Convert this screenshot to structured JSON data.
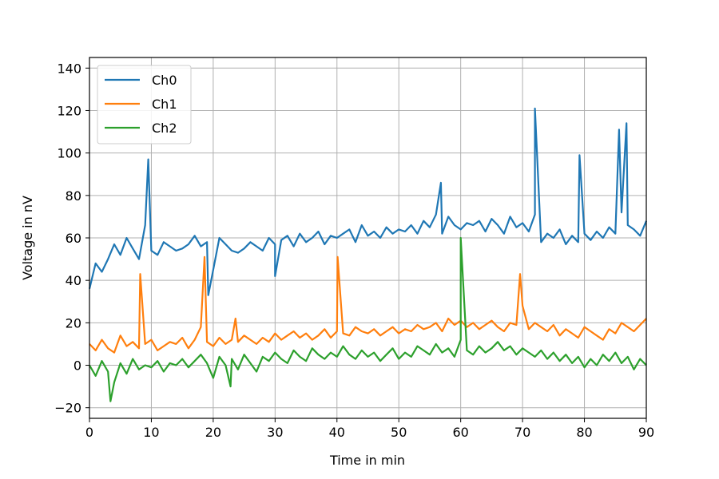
{
  "chart_data": {
    "type": "line",
    "title": "",
    "xlabel": "Time in min",
    "ylabel": "Voltage in nV",
    "xlim": [
      0,
      90
    ],
    "ylim": [
      -25,
      145
    ],
    "xticks": [
      0,
      10,
      20,
      30,
      40,
      50,
      60,
      70,
      80,
      90
    ],
    "yticks": [
      -20,
      0,
      20,
      40,
      60,
      80,
      100,
      120,
      140
    ],
    "ytick_labels": [
      "−20",
      "0",
      "20",
      "40",
      "60",
      "80",
      "100",
      "120",
      "140"
    ],
    "grid": true,
    "legend_position": "upper-left",
    "x": [
      0,
      1,
      2,
      3,
      4,
      5,
      6,
      7,
      8,
      9,
      10,
      11,
      12,
      13,
      14,
      15,
      16,
      17,
      18,
      19,
      20,
      21,
      22,
      23,
      24,
      25,
      26,
      27,
      28,
      29,
      30,
      31,
      32,
      33,
      34,
      35,
      36,
      37,
      38,
      39,
      40,
      41,
      42,
      43,
      44,
      45,
      46,
      47,
      48,
      49,
      50,
      51,
      52,
      53,
      54,
      55,
      56,
      57,
      58,
      59,
      60,
      61,
      62,
      63,
      64,
      65,
      66,
      67,
      68,
      69,
      70,
      71,
      72,
      73,
      74,
      75,
      76,
      77,
      78,
      79,
      80,
      81,
      82,
      83,
      84,
      85,
      86,
      87,
      88,
      89,
      90
    ],
    "series": [
      {
        "name": "Ch0",
        "color": "#1f77b4",
        "values": [
          36,
          48,
          44,
          50,
          57,
          52,
          60,
          55,
          50,
          66,
          54,
          52,
          58,
          56,
          54,
          55,
          57,
          61,
          56,
          58,
          45,
          60,
          57,
          54,
          53,
          55,
          58,
          56,
          54,
          60,
          57,
          59,
          61,
          56,
          62,
          58,
          60,
          63,
          57,
          61,
          60,
          62,
          64,
          58,
          66,
          61,
          63,
          60,
          65,
          62,
          64,
          63,
          66,
          62,
          68,
          65,
          71,
          62,
          70,
          66,
          64,
          67,
          66,
          68,
          63,
          69,
          66,
          62,
          70,
          65,
          67,
          63,
          71,
          58,
          62,
          60,
          64,
          57,
          61,
          58,
          62,
          59,
          63,
          60,
          65,
          62,
          72,
          66,
          64,
          61,
          68
        ]
      },
      {
        "name": "Ch1",
        "color": "#ff7f0e",
        "values": [
          10,
          7,
          12,
          8,
          6,
          14,
          9,
          11,
          8,
          10,
          12,
          7,
          9,
          11,
          10,
          13,
          8,
          12,
          18,
          11,
          9,
          13,
          10,
          12,
          11,
          14,
          12,
          10,
          13,
          11,
          15,
          12,
          14,
          16,
          13,
          15,
          12,
          14,
          17,
          13,
          16,
          15,
          14,
          18,
          16,
          15,
          17,
          14,
          16,
          18,
          15,
          17,
          16,
          19,
          17,
          18,
          20,
          16,
          22,
          19,
          21,
          18,
          20,
          17,
          19,
          21,
          18,
          16,
          20,
          19,
          28,
          17,
          20,
          18,
          16,
          19,
          14,
          17,
          15,
          13,
          18,
          16,
          14,
          12,
          17,
          15,
          20,
          18,
          16,
          19,
          22
        ]
      },
      {
        "name": "Ch2",
        "color": "#2ca02c",
        "values": [
          0,
          -5,
          2,
          -3,
          -8,
          1,
          -4,
          3,
          -2,
          0,
          -1,
          2,
          -3,
          1,
          0,
          3,
          -1,
          2,
          5,
          1,
          -6,
          4,
          0,
          3,
          -2,
          5,
          1,
          -3,
          4,
          2,
          6,
          3,
          1,
          7,
          4,
          2,
          8,
          5,
          3,
          6,
          4,
          9,
          5,
          3,
          7,
          4,
          6,
          2,
          5,
          8,
          3,
          6,
          4,
          9,
          7,
          5,
          10,
          6,
          8,
          4,
          12,
          7,
          5,
          9,
          6,
          8,
          11,
          7,
          9,
          5,
          8,
          6,
          4,
          7,
          3,
          6,
          2,
          5,
          1,
          4,
          -1,
          3,
          0,
          5,
          2,
          6,
          1,
          4,
          -2,
          3,
          0
        ]
      }
    ],
    "spikes": [
      {
        "series": 0,
        "x": 9.5,
        "y": 97
      },
      {
        "series": 0,
        "x": 72,
        "y": 121
      },
      {
        "series": 0,
        "x": 79.2,
        "y": 99
      },
      {
        "series": 0,
        "x": 85.6,
        "y": 111
      },
      {
        "series": 0,
        "x": 86.8,
        "y": 114
      },
      {
        "series": 0,
        "x": 56.8,
        "y": 86
      },
      {
        "series": 0,
        "x": 19.2,
        "y": 33
      },
      {
        "series": 0,
        "x": 30,
        "y": 42
      },
      {
        "series": 1,
        "x": 8.2,
        "y": 43
      },
      {
        "series": 1,
        "x": 18.6,
        "y": 51
      },
      {
        "series": 1,
        "x": 40.1,
        "y": 51
      },
      {
        "series": 1,
        "x": 69.6,
        "y": 43
      },
      {
        "series": 1,
        "x": 23.6,
        "y": 22
      },
      {
        "series": 2,
        "x": 60,
        "y": 60
      },
      {
        "series": 2,
        "x": 3.4,
        "y": -17
      },
      {
        "series": 2,
        "x": 22.8,
        "y": -10
      }
    ]
  }
}
